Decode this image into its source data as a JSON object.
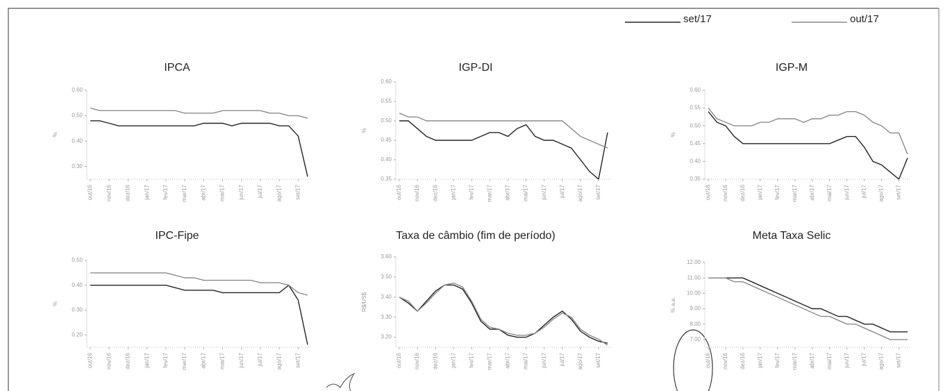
{
  "legend": [
    {
      "name": "set/17",
      "color": "#222222"
    },
    {
      "name": "out/17",
      "color": "#8a8a8a"
    }
  ],
  "chart_data": [
    {
      "type": "line",
      "title": "IPCA",
      "y_label": "%",
      "categories": [
        "out/16",
        null,
        "nov/16",
        null,
        "dez/16",
        null,
        "jan/17",
        null,
        "fev/17",
        null,
        "mar/17",
        null,
        "abr/17",
        null,
        "mai/17",
        null,
        "jun/17",
        null,
        "jul/17",
        null,
        "ago/17",
        null,
        "set/17",
        null
      ],
      "series": [
        {
          "values": [
            0.48,
            0.48,
            0.47,
            0.46,
            0.46,
            0.46,
            0.46,
            0.46,
            0.46,
            0.46,
            0.46,
            0.46,
            0.47,
            0.47,
            0.47,
            0.46,
            0.47,
            0.47,
            0.47,
            0.47,
            0.46,
            0.46,
            0.42,
            0.26
          ]
        },
        {
          "values": [
            0.53,
            0.52,
            0.52,
            0.52,
            0.52,
            0.52,
            0.52,
            0.52,
            0.52,
            0.52,
            0.51,
            0.51,
            0.51,
            0.51,
            0.52,
            0.52,
            0.52,
            0.52,
            0.52,
            0.51,
            0.51,
            0.5,
            0.5,
            0.49
          ]
        }
      ],
      "ylim": [
        0.25,
        0.6
      ],
      "yticks": [
        {
          "value": 0.3,
          "label": "0.30"
        },
        {
          "value": 0.4,
          "label": "0.40"
        },
        {
          "value": 0.5,
          "label": "0.50"
        },
        {
          "value": 0.6,
          "label": "0.60"
        }
      ]
    },
    {
      "type": "line",
      "title": "IGP-DI",
      "y_label": "%",
      "categories": [
        "out/16",
        null,
        "nov/16",
        null,
        "dez/16",
        null,
        "jan/17",
        null,
        "fev/17",
        null,
        "mar/17",
        null,
        "abr/17",
        null,
        "mai/17",
        null,
        "jun/17",
        null,
        "jul/17",
        null,
        "ago/17",
        null,
        "set/17",
        null
      ],
      "series": [
        {
          "values": [
            0.5,
            0.5,
            0.48,
            0.46,
            0.45,
            0.45,
            0.45,
            0.45,
            0.45,
            0.46,
            0.47,
            0.47,
            0.46,
            0.48,
            0.49,
            0.46,
            0.45,
            0.45,
            0.44,
            0.43,
            0.4,
            0.37,
            0.35,
            0.47
          ]
        },
        {
          "values": [
            0.52,
            0.51,
            0.51,
            0.5,
            0.5,
            0.5,
            0.5,
            0.5,
            0.5,
            0.5,
            0.5,
            0.5,
            0.5,
            0.5,
            0.5,
            0.5,
            0.5,
            0.5,
            0.5,
            0.48,
            0.46,
            0.45,
            0.44,
            0.43
          ]
        }
      ],
      "ylim": [
        0.35,
        0.6
      ],
      "yticks": [
        {
          "value": 0.35,
          "label": "0.35"
        },
        {
          "value": 0.4,
          "label": "0.40"
        },
        {
          "value": 0.45,
          "label": "0.45"
        },
        {
          "value": 0.5,
          "label": "0.50"
        },
        {
          "value": 0.55,
          "label": "0.55"
        },
        {
          "value": 0.6,
          "label": "0.60"
        }
      ]
    },
    {
      "type": "line",
      "title": "IGP-M",
      "y_label": "%",
      "categories": [
        "out/16",
        null,
        "nov/16",
        null,
        "dez/16",
        null,
        "jan/17",
        null,
        "fev/17",
        null,
        "mar/17",
        null,
        "abr/17",
        null,
        "mai/17",
        null,
        "jun/17",
        null,
        "jul/17",
        null,
        "ago/17",
        null,
        "set/17",
        null
      ],
      "series": [
        {
          "values": [
            0.54,
            0.51,
            0.5,
            0.47,
            0.45,
            0.45,
            0.45,
            0.45,
            0.45,
            0.45,
            0.45,
            0.45,
            0.45,
            0.45,
            0.45,
            0.46,
            0.47,
            0.47,
            0.44,
            0.4,
            0.39,
            0.37,
            0.35,
            0.41
          ]
        },
        {
          "values": [
            0.55,
            0.52,
            0.51,
            0.5,
            0.5,
            0.5,
            0.51,
            0.51,
            0.52,
            0.52,
            0.52,
            0.51,
            0.52,
            0.52,
            0.53,
            0.53,
            0.54,
            0.54,
            0.53,
            0.51,
            0.5,
            0.48,
            0.48,
            0.42
          ]
        }
      ],
      "ylim": [
        0.35,
        0.6
      ],
      "yticks": [
        {
          "value": 0.35,
          "label": "0.35"
        },
        {
          "value": 0.4,
          "label": "0.40"
        },
        {
          "value": 0.45,
          "label": "0.45"
        },
        {
          "value": 0.5,
          "label": "0.50"
        },
        {
          "value": 0.55,
          "label": "0.55"
        },
        {
          "value": 0.6,
          "label": "0.60"
        }
      ]
    },
    {
      "type": "line",
      "title": "IPC-Fipe",
      "y_label": "%",
      "categories": [
        "out/16",
        null,
        "nov/16",
        null,
        "dez/16",
        null,
        "jan/17",
        null,
        "fev/17",
        null,
        "mar/17",
        null,
        "abr/17",
        null,
        "mai/17",
        null,
        "jun/17",
        null,
        "jul/17",
        null,
        "ago/17",
        null,
        "set/17",
        null
      ],
      "series": [
        {
          "values": [
            0.4,
            0.4,
            0.4,
            0.4,
            0.4,
            0.4,
            0.4,
            0.4,
            0.4,
            0.39,
            0.38,
            0.38,
            0.38,
            0.38,
            0.37,
            0.37,
            0.37,
            0.37,
            0.37,
            0.37,
            0.37,
            0.4,
            0.34,
            0.16
          ]
        },
        {
          "values": [
            0.45,
            0.45,
            0.45,
            0.45,
            0.45,
            0.45,
            0.45,
            0.45,
            0.45,
            0.44,
            0.43,
            0.43,
            0.42,
            0.42,
            0.42,
            0.42,
            0.42,
            0.42,
            0.41,
            0.41,
            0.41,
            0.4,
            0.37,
            0.36
          ]
        }
      ],
      "ylim": [
        0.15,
        0.5
      ],
      "yticks": [
        {
          "value": 0.2,
          "label": "0.20"
        },
        {
          "value": 0.3,
          "label": "0.30"
        },
        {
          "value": 0.4,
          "label": "0.40"
        },
        {
          "value": 0.5,
          "label": "0.50"
        }
      ]
    },
    {
      "type": "line",
      "title": "Taxa de câmbio (fim de período)",
      "y_label": "R$/US$",
      "categories": [
        "out/16",
        null,
        "nov/16",
        null,
        "dez/16",
        null,
        "jan/17",
        null,
        "fev/17",
        null,
        "mar/17",
        null,
        "abr/17",
        null,
        "mai/17",
        null,
        "jun/17",
        null,
        "jul/17",
        null,
        "ago/17",
        null,
        "set/17",
        null
      ],
      "series": [
        {
          "values": [
            3.4,
            3.37,
            3.33,
            3.38,
            3.43,
            3.46,
            3.46,
            3.44,
            3.37,
            3.28,
            3.24,
            3.24,
            3.21,
            3.2,
            3.2,
            3.22,
            3.26,
            3.3,
            3.33,
            3.29,
            3.23,
            3.2,
            3.18,
            3.17
          ]
        },
        {
          "values": [
            3.4,
            3.38,
            3.33,
            3.37,
            3.42,
            3.46,
            3.47,
            3.45,
            3.38,
            3.29,
            3.25,
            3.24,
            3.22,
            3.21,
            3.21,
            3.22,
            3.25,
            3.29,
            3.32,
            3.3,
            3.24,
            3.21,
            3.19,
            3.16
          ]
        }
      ],
      "ylim": [
        3.15,
        3.6
      ],
      "yticks": [
        {
          "value": 3.2,
          "label": "3.20"
        },
        {
          "value": 3.3,
          "label": "3.30"
        },
        {
          "value": 3.4,
          "label": "3.40"
        },
        {
          "value": 3.5,
          "label": "3.50"
        },
        {
          "value": 3.6,
          "label": "3.60"
        }
      ]
    },
    {
      "type": "line",
      "title": "Meta Taxa Selic",
      "y_label": "% a.a.",
      "categories": [
        "out/16",
        null,
        "nov/16",
        null,
        "dez/16",
        null,
        "jan/17",
        null,
        "fev/17",
        null,
        "mar/17",
        null,
        "abr/17",
        null,
        "mai/17",
        null,
        "jun/17",
        null,
        "jul/17",
        null,
        "ago/17",
        null,
        "set/17",
        null
      ],
      "series": [
        {
          "values": [
            11,
            11,
            11,
            11,
            11,
            10.75,
            10.5,
            10.25,
            10,
            9.75,
            9.5,
            9.25,
            9,
            9,
            8.75,
            8.5,
            8.5,
            8.25,
            8,
            8,
            7.75,
            7.5,
            7.5,
            7.5
          ]
        },
        {
          "values": [
            11,
            11,
            11,
            10.75,
            10.75,
            10.5,
            10.25,
            10,
            9.75,
            9.5,
            9.25,
            9,
            8.75,
            8.5,
            8.5,
            8.25,
            8,
            8,
            7.75,
            7.5,
            7.25,
            7,
            7,
            7
          ]
        }
      ],
      "ylim": [
        6.5,
        12
      ],
      "yticks": [
        {
          "value": 7,
          "label": "7.00"
        },
        {
          "value": 8,
          "label": "8.00"
        },
        {
          "value": 9,
          "label": "9.00"
        },
        {
          "value": 10,
          "label": "10.00"
        },
        {
          "value": 11,
          "label": "11.00"
        },
        {
          "value": 12,
          "label": "12.00"
        }
      ]
    }
  ]
}
